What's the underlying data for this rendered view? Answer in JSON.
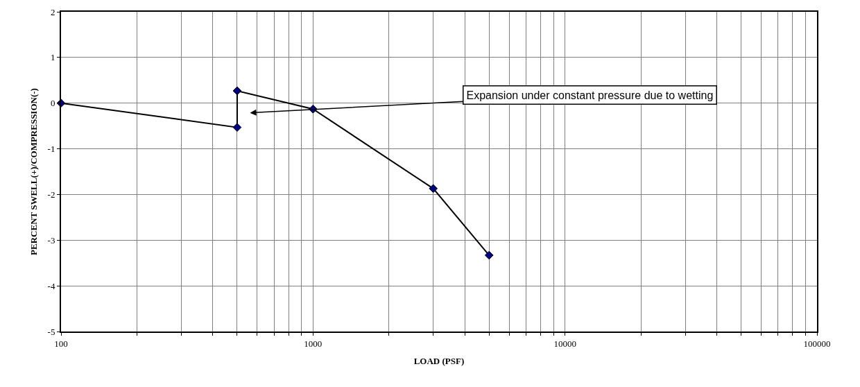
{
  "chart_data": {
    "type": "line",
    "xlabel": "LOAD (PSF)",
    "ylabel": "PERCENT SWELL(+)/COMPRESSION(-)",
    "x": [
      100,
      500,
      500,
      1000,
      3000,
      5000
    ],
    "series": [
      {
        "color": "#000080",
        "values": [
          0,
          -0.53,
          0.27,
          -0.13,
          -1.87,
          -3.33
        ]
      }
    ],
    "log": "x",
    "xlim": [
      100,
      100000
    ],
    "ylim": [
      -5,
      2
    ],
    "xticks": [
      100,
      {
        "value": 200,
        "label": null
      },
      {
        "value": 300,
        "label": null
      },
      {
        "value": 400,
        "label": null
      },
      {
        "value": 500,
        "label": null
      },
      {
        "value": 600,
        "label": null
      },
      {
        "value": 700,
        "label": null
      },
      {
        "value": 800,
        "label": null
      },
      {
        "value": 900,
        "label": null
      },
      1000,
      {
        "value": 2000,
        "label": null
      },
      {
        "value": 3000,
        "label": null
      },
      {
        "value": 4000,
        "label": null
      },
      {
        "value": 5000,
        "label": null
      },
      {
        "value": 6000,
        "label": null
      },
      {
        "value": 7000,
        "label": null
      },
      {
        "value": 8000,
        "label": null
      },
      {
        "value": 9000,
        "label": null
      },
      10000,
      {
        "value": 20000,
        "label": null
      },
      {
        "value": 30000,
        "label": null
      },
      {
        "value": 40000,
        "label": null
      },
      {
        "value": 50000,
        "label": null
      },
      {
        "value": 60000,
        "label": null
      },
      {
        "value": 70000,
        "label": null
      },
      {
        "value": 80000,
        "label": null
      },
      {
        "value": 90000,
        "label": null
      },
      100000
    ],
    "yticks": [
      -5,
      -4,
      -3,
      -2,
      -1,
      0,
      1,
      2
    ],
    "grid": true,
    "marker": "diamond",
    "line_style": "solid",
    "annotations": [
      "Expansion under constant pressure due to wetting"
    ]
  }
}
